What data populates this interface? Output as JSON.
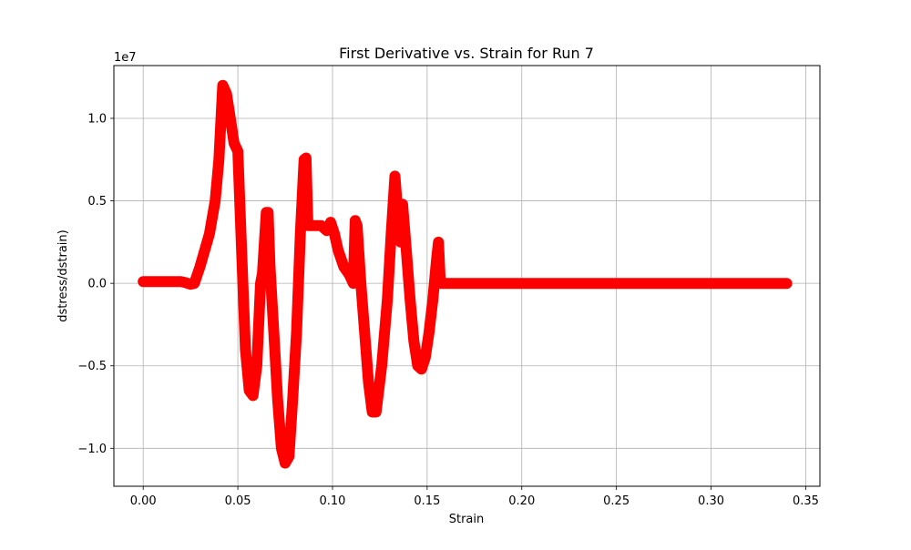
{
  "chart_data": {
    "type": "scatter",
    "title": "First Derivative vs. Strain for Run 7",
    "xlabel": "Strain",
    "ylabel": "dstress/dstrain)",
    "y_offset_text": "1e7",
    "y_scale": 10000000,
    "xlim": [
      -0.0155,
      0.3575
    ],
    "ylim": [
      -12300000,
      13200000
    ],
    "grid": true,
    "marker_color": "#ff0000",
    "x_ticks": [
      0.0,
      0.05,
      0.1,
      0.15,
      0.2,
      0.25,
      0.3,
      0.35
    ],
    "x_tick_labels": [
      "0.00",
      "0.05",
      "0.10",
      "0.15",
      "0.20",
      "0.25",
      "0.30",
      "0.35"
    ],
    "y_ticks": [
      -10000000,
      -5000000,
      0,
      5000000,
      10000000
    ],
    "y_tick_labels": [
      "−1.0",
      "−0.5",
      "0.0",
      "0.5",
      "1.0"
    ],
    "series": [
      {
        "points": [
          [
            0.0,
            100000
          ],
          [
            0.01,
            100000
          ],
          [
            0.02,
            100000
          ],
          [
            0.022,
            50000
          ],
          [
            0.025,
            -50000
          ],
          [
            0.027,
            0
          ],
          [
            0.03,
            1000000
          ],
          [
            0.035,
            3000000
          ],
          [
            0.038,
            5000000
          ],
          [
            0.04,
            7500000
          ],
          [
            0.042,
            12000000
          ],
          [
            0.044,
            11500000
          ],
          [
            0.046,
            10000000
          ],
          [
            0.048,
            8500000
          ],
          [
            0.05,
            8000000
          ],
          [
            0.052,
            2000000
          ],
          [
            0.054,
            -4000000
          ],
          [
            0.056,
            -6500000
          ],
          [
            0.058,
            -6800000
          ],
          [
            0.06,
            -5000000
          ],
          [
            0.062,
            0
          ],
          [
            0.063,
            600000
          ],
          [
            0.065,
            4300000
          ],
          [
            0.066,
            4300000
          ],
          [
            0.067,
            1000000
          ],
          [
            0.069,
            -3000000
          ],
          [
            0.071,
            -7000000
          ],
          [
            0.073,
            -10000000
          ],
          [
            0.075,
            -10900000
          ],
          [
            0.077,
            -10500000
          ],
          [
            0.079,
            -7000000
          ],
          [
            0.081,
            -3000000
          ],
          [
            0.083,
            3000000
          ],
          [
            0.085,
            7500000
          ],
          [
            0.086,
            7600000
          ],
          [
            0.087,
            3500000
          ],
          [
            0.09,
            3500000
          ],
          [
            0.092,
            3500000
          ],
          [
            0.094,
            3500000
          ],
          [
            0.097,
            3200000
          ],
          [
            0.099,
            3700000
          ],
          [
            0.101,
            3000000
          ],
          [
            0.103,
            2000000
          ],
          [
            0.106,
            1000000
          ],
          [
            0.109,
            500000
          ],
          [
            0.111,
            0
          ],
          [
            0.112,
            3800000
          ],
          [
            0.113,
            3500000
          ],
          [
            0.115,
            0
          ],
          [
            0.117,
            -3000000
          ],
          [
            0.119,
            -6000000
          ],
          [
            0.121,
            -7800000
          ],
          [
            0.123,
            -7800000
          ],
          [
            0.126,
            -5000000
          ],
          [
            0.129,
            -1000000
          ],
          [
            0.131,
            3000000
          ],
          [
            0.133,
            6500000
          ],
          [
            0.135,
            3500000
          ],
          [
            0.136,
            2500000
          ],
          [
            0.137,
            4800000
          ],
          [
            0.139,
            2000000
          ],
          [
            0.141,
            -1000000
          ],
          [
            0.143,
            -3500000
          ],
          [
            0.145,
            -5000000
          ],
          [
            0.147,
            -5200000
          ],
          [
            0.149,
            -4500000
          ],
          [
            0.151,
            -3000000
          ],
          [
            0.153,
            -1000000
          ],
          [
            0.155,
            1500000
          ],
          [
            0.156,
            2500000
          ],
          [
            0.157,
            0
          ],
          [
            0.2,
            0
          ],
          [
            0.25,
            0
          ],
          [
            0.3,
            0
          ],
          [
            0.34,
            0
          ]
        ]
      }
    ]
  }
}
